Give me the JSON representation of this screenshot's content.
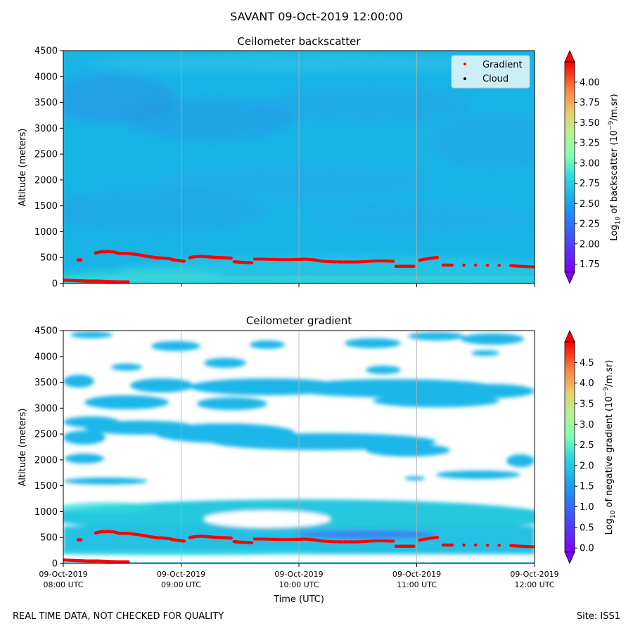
{
  "suptitle": "SAVANT 09-Oct-2019 12:00:00",
  "footer": {
    "left": "REAL TIME DATA, NOT CHECKED FOR QUALITY",
    "right": "Site: ISS1"
  },
  "chart_data": [
    {
      "type": "heatmap",
      "title": "Ceilometer backscatter",
      "ylabel": "Altitude (meters)",
      "xlabel": "",
      "xlim": [
        "08:00",
        "12:00"
      ],
      "ylim": [
        0,
        4500
      ],
      "yticks": [
        "0",
        "500",
        "1000",
        "1500",
        "2000",
        "2500",
        "3000",
        "3500",
        "4000",
        "4500"
      ],
      "xticks": [
        "08:00",
        "09:00",
        "10:00",
        "11:00",
        "12:00"
      ],
      "grid": "vertical lines at hourly ticks",
      "legend": {
        "placement": "top-right",
        "entries": [
          {
            "label": "Gradient",
            "color": "#ff0000"
          },
          {
            "label": "Cloud",
            "color": "#000000"
          }
        ]
      },
      "colorbar": {
        "label": "Log10 of backscatter (10^-9/m.sr)",
        "ticks": [
          "1.75",
          "2.00",
          "2.25",
          "2.50",
          "2.75",
          "3.00",
          "3.25",
          "3.50",
          "3.75",
          "4.00"
        ],
        "range": [
          1.65,
          4.25
        ],
        "colormap": "rainbow",
        "extend": "both"
      },
      "series": [
        {
          "name": "Gradient",
          "color": "#ff0000",
          "points": [
            [
              0.0,
              65
            ],
            [
              0.1,
              60
            ],
            [
              0.2,
              55
            ],
            [
              0.3,
              50
            ],
            [
              0.4,
              45
            ],
            [
              0.5,
              45
            ],
            [
              0.6,
              45
            ],
            [
              0.7,
              40
            ],
            [
              0.8,
              35
            ],
            [
              0.9,
              30
            ],
            [
              1.0,
              30
            ],
            [
              1.1,
              30
            ],
            [
              0.25,
              455
            ],
            [
              0.3,
              455
            ],
            [
              0.55,
              590
            ],
            [
              0.6,
              600
            ],
            [
              0.65,
              615
            ],
            [
              0.7,
              610
            ],
            [
              0.75,
              615
            ],
            [
              0.85,
              610
            ],
            [
              0.95,
              580
            ],
            [
              1.1,
              580
            ],
            [
              1.2,
              565
            ],
            [
              1.3,
              550
            ],
            [
              1.4,
              530
            ],
            [
              1.5,
              510
            ],
            [
              1.6,
              495
            ],
            [
              1.7,
              490
            ],
            [
              1.8,
              480
            ],
            [
              1.85,
              460
            ],
            [
              1.95,
              445
            ],
            [
              2.05,
              430
            ],
            [
              2.15,
              500
            ],
            [
              2.25,
              520
            ],
            [
              2.35,
              525
            ],
            [
              2.45,
              515
            ],
            [
              2.55,
              505
            ],
            [
              2.65,
              500
            ],
            [
              2.75,
              495
            ],
            [
              2.85,
              490
            ],
            [
              2.9,
              420
            ],
            [
              3.0,
              410
            ],
            [
              3.1,
              405
            ],
            [
              3.2,
              400
            ],
            [
              3.25,
              470
            ],
            [
              3.4,
              470
            ],
            [
              3.55,
              465
            ],
            [
              3.7,
              460
            ],
            [
              3.85,
              460
            ],
            [
              4.0,
              465
            ],
            [
              4.1,
              470
            ],
            [
              4.2,
              460
            ],
            [
              4.3,
              450
            ],
            [
              4.4,
              430
            ],
            [
              4.55,
              420
            ],
            [
              4.7,
              415
            ],
            [
              4.85,
              415
            ],
            [
              5.0,
              415
            ],
            [
              5.15,
              425
            ],
            [
              5.3,
              435
            ],
            [
              5.45,
              435
            ],
            [
              5.6,
              430
            ],
            [
              5.65,
              330
            ],
            [
              5.75,
              330
            ],
            [
              5.85,
              330
            ],
            [
              5.95,
              330
            ],
            [
              6.05,
              450
            ],
            [
              6.15,
              470
            ],
            [
              6.25,
              490
            ],
            [
              6.35,
              500
            ],
            [
              6.45,
              355
            ],
            [
              6.6,
              355
            ],
            [
              6.8,
              355
            ],
            [
              7.0,
              355
            ],
            [
              7.2,
              350
            ],
            [
              7.4,
              350
            ],
            [
              7.6,
              345
            ],
            [
              7.7,
              335
            ],
            [
              7.85,
              325
            ],
            [
              8.0,
              320
            ]
          ]
        },
        {
          "name": "Cloud",
          "color": "#000000",
          "points": []
        }
      ]
    },
    {
      "type": "heatmap",
      "title": "Ceilometer gradient",
      "ylabel": "Altitude (meters)",
      "xlabel": "Time (UTC)",
      "xlim": [
        "08:00",
        "12:00"
      ],
      "ylim": [
        0,
        4500
      ],
      "yticks": [
        "0",
        "500",
        "1000",
        "1500",
        "2000",
        "2500",
        "3000",
        "3500",
        "4000",
        "4500"
      ],
      "xticks": [
        {
          "date": "09-Oct-2019",
          "time": "08:00 UTC"
        },
        {
          "date": "09-Oct-2019",
          "time": "09:00 UTC"
        },
        {
          "date": "09-Oct-2019",
          "time": "10:00 UTC"
        },
        {
          "date": "09-Oct-2019",
          "time": "11:00 UTC"
        },
        {
          "date": "09-Oct-2019",
          "time": "12:00 UTC"
        }
      ],
      "grid": "vertical lines at hourly ticks",
      "colorbar": {
        "label": "Log10 of negative gradient (10^-9/m.sr)",
        "ticks": [
          "0.0",
          "0.5",
          "1.0",
          "1.5",
          "2.0",
          "2.5",
          "3.0",
          "3.5",
          "4.0",
          "4.5"
        ],
        "range": [
          -0.1,
          5.0
        ],
        "colormap": "rainbow",
        "extend": "both"
      },
      "gradient_series_note": "same red Gradient points overlaid"
    }
  ]
}
